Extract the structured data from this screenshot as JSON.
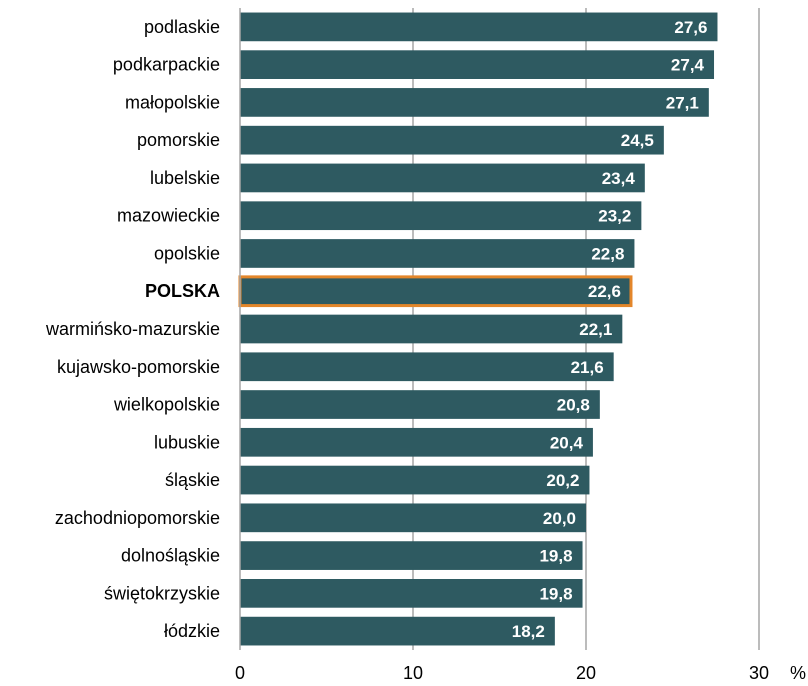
{
  "chart_data": {
    "type": "bar",
    "orientation": "horizontal",
    "categories": [
      "podlaskie",
      "podkarpackie",
      "małopolskie",
      "pomorskie",
      "lubelskie",
      "mazowieckie",
      "opolskie",
      "POLSKA",
      "warmińsko-mazurskie",
      "kujawsko-pomorskie",
      "wielkopolskie",
      "lubuskie",
      "śląskie",
      "zachodniopomorskie",
      "dolnośląskie",
      "świętokrzyskie",
      "łódzkie"
    ],
    "values": [
      27.6,
      27.4,
      27.1,
      24.5,
      23.4,
      23.2,
      22.8,
      22.6,
      22.1,
      21.6,
      20.8,
      20.4,
      20.2,
      20.0,
      19.8,
      19.8,
      18.2
    ],
    "value_labels": [
      "27,6",
      "27,4",
      "27,1",
      "24,5",
      "23,4",
      "23,2",
      "22,8",
      "22,6",
      "22,1",
      "21,6",
      "20,8",
      "20,4",
      "20,2",
      "20,0",
      "19,8",
      "19,8",
      "18,2"
    ],
    "highlight_category": "POLSKA",
    "xlim": [
      0,
      30
    ],
    "x_ticks": [
      0,
      10,
      20,
      30
    ],
    "x_tick_labels": [
      "0",
      "10",
      "20",
      "30"
    ],
    "unit_label": "%",
    "grid": "vertical",
    "bar_color": "#2e5a61",
    "highlight_border_color": "#e3862a",
    "grid_color": "#a6a6a6"
  }
}
